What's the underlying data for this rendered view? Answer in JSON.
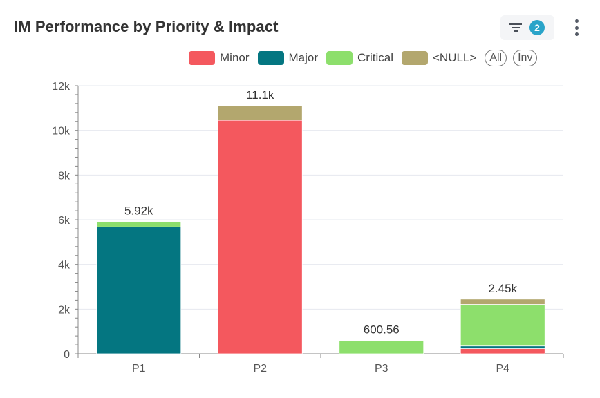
{
  "header": {
    "title": "IM Performance by Priority & Impact",
    "filter_count": "2"
  },
  "legend": {
    "items": [
      {
        "label": "Minor",
        "color": "#f4585e"
      },
      {
        "label": "Major",
        "color": "#047681"
      },
      {
        "label": "Critical",
        "color": "#8ddf6c"
      },
      {
        "label": "<NULL>",
        "color": "#b3a76e"
      }
    ],
    "all_label": "All",
    "inv_label": "Inv"
  },
  "chart_data": {
    "type": "bar",
    "stacked": true,
    "categories": [
      "P1",
      "P2",
      "P3",
      "P4"
    ],
    "series": [
      {
        "name": "Minor",
        "color": "#f4585e",
        "values": [
          0,
          10450,
          0,
          230
        ]
      },
      {
        "name": "Major",
        "color": "#047681",
        "values": [
          5680,
          0,
          0,
          120
        ]
      },
      {
        "name": "Critical",
        "color": "#8ddf6c",
        "values": [
          240,
          0,
          600.56,
          1860
        ]
      },
      {
        "name": "<NULL>",
        "color": "#b3a76e",
        "values": [
          0,
          650,
          0,
          240
        ]
      }
    ],
    "totals": [
      "5.92k",
      "11.1k",
      "600.56",
      "2.45k"
    ],
    "ylim": [
      0,
      12000
    ],
    "yticks": [
      0,
      2000,
      4000,
      6000,
      8000,
      10000,
      12000
    ],
    "ytick_labels": [
      "0",
      "2k",
      "4k",
      "6k",
      "8k",
      "10k",
      "12k"
    ],
    "grid": true,
    "legend_position": "top-right"
  }
}
